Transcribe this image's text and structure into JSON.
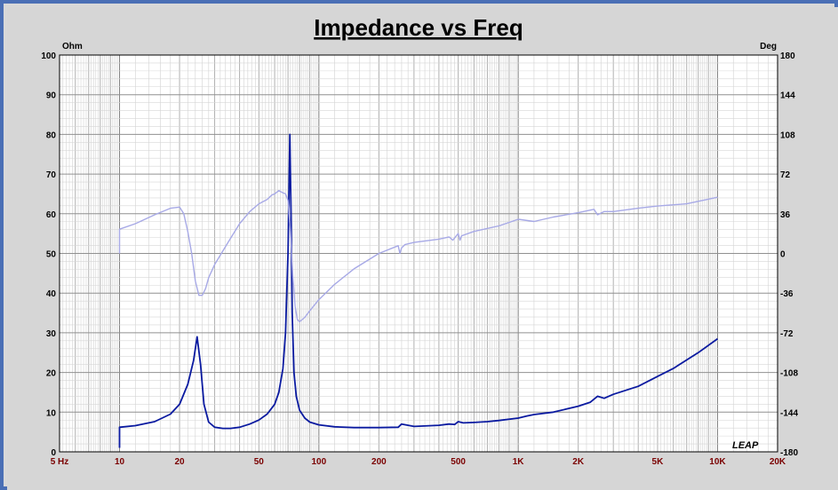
{
  "chart_data": {
    "type": "line",
    "title": "Impedance vs Freq",
    "ylabel_left": "Ohm",
    "ylabel_right": "Deg",
    "x_scale": "log",
    "xlim": [
      5,
      20000
    ],
    "ylim_left": [
      0,
      100
    ],
    "ylim_right": [
      -180,
      180
    ],
    "x_tick_labels": [
      {
        "value": 5,
        "label": "5 Hz"
      },
      {
        "value": 10,
        "label": "10"
      },
      {
        "value": 20,
        "label": "20"
      },
      {
        "value": 50,
        "label": "50"
      },
      {
        "value": 100,
        "label": "100"
      },
      {
        "value": 200,
        "label": "200"
      },
      {
        "value": 500,
        "label": "500"
      },
      {
        "value": 1000,
        "label": "1K"
      },
      {
        "value": 2000,
        "label": "2K"
      },
      {
        "value": 5000,
        "label": "5K"
      },
      {
        "value": 10000,
        "label": "10K"
      },
      {
        "value": 20000,
        "label": "20K"
      }
    ],
    "y_left_ticks": [
      "0",
      "10",
      "20",
      "30",
      "40",
      "50",
      "60",
      "70",
      "80",
      "90",
      "100"
    ],
    "y_right_ticks": [
      "-180",
      "-144",
      "-108",
      "-72",
      "-36",
      "0",
      "36",
      "72",
      "108",
      "144",
      "180"
    ],
    "grid": true,
    "series": [
      {
        "axis": "left",
        "color": "#0a1aa0",
        "x": [
          10,
          10,
          12,
          15,
          18,
          20,
          22,
          23.5,
          24.5,
          25.5,
          26.5,
          28,
          30,
          33,
          36,
          40,
          45,
          50,
          55,
          60,
          63,
          66,
          68,
          70,
          71.5,
          72.5,
          73.5,
          75,
          77,
          80,
          85,
          90,
          100,
          120,
          150,
          200,
          250,
          260,
          300,
          400,
          450,
          480,
          500,
          530,
          600,
          700,
          800,
          1000,
          1100,
          1200,
          1500,
          2000,
          2300,
          2500,
          2700,
          3000,
          4000,
          5000,
          6000,
          8000,
          10000
        ],
        "y": [
          1,
          6.2,
          6.6,
          7.6,
          9.5,
          12,
          17,
          23,
          29,
          22,
          12,
          7.5,
          6.2,
          5.9,
          5.9,
          6.2,
          7,
          8,
          9.5,
          12,
          15,
          21,
          30,
          50,
          80,
          60,
          35,
          20,
          14,
          10.5,
          8.5,
          7.5,
          6.8,
          6.3,
          6.1,
          6.1,
          6.2,
          7,
          6.4,
          6.7,
          7,
          6.9,
          7.6,
          7.3,
          7.4,
          7.6,
          7.9,
          8.5,
          9,
          9.4,
          10,
          11.5,
          12.5,
          14,
          13.5,
          14.5,
          16.5,
          19,
          21,
          25,
          28.5
        ]
      },
      {
        "axis": "right",
        "color": "#a7a9e6",
        "x": [
          10,
          10,
          12,
          15,
          18,
          20,
          21,
          22,
          23,
          24,
          25,
          26,
          27,
          28,
          30,
          35,
          40,
          45,
          50,
          55,
          58,
          60,
          63,
          66,
          68,
          70,
          72,
          74,
          76,
          78,
          80,
          85,
          90,
          100,
          120,
          150,
          200,
          250,
          255,
          260,
          270,
          300,
          400,
          450,
          470,
          500,
          510,
          520,
          600,
          800,
          1000,
          1200,
          1500,
          2000,
          2400,
          2500,
          2700,
          3000,
          4000,
          5000,
          7000,
          10000
        ],
        "y": [
          0,
          22,
          27,
          35,
          41,
          42,
          36,
          20,
          0,
          -25,
          -38,
          -38,
          -32,
          -22,
          -10,
          10,
          27,
          38,
          45,
          49,
          53,
          54,
          57,
          55,
          54,
          48,
          20,
          -20,
          -48,
          -60,
          -62,
          -58,
          -52,
          -42,
          -28,
          -14,
          0,
          7,
          0,
          5,
          8,
          10,
          13,
          15,
          12,
          18,
          12,
          16,
          20,
          25,
          31,
          29,
          33,
          37,
          40,
          35,
          38,
          38,
          41,
          43,
          45,
          51
        ]
      }
    ]
  },
  "logo_text": "LEAP"
}
